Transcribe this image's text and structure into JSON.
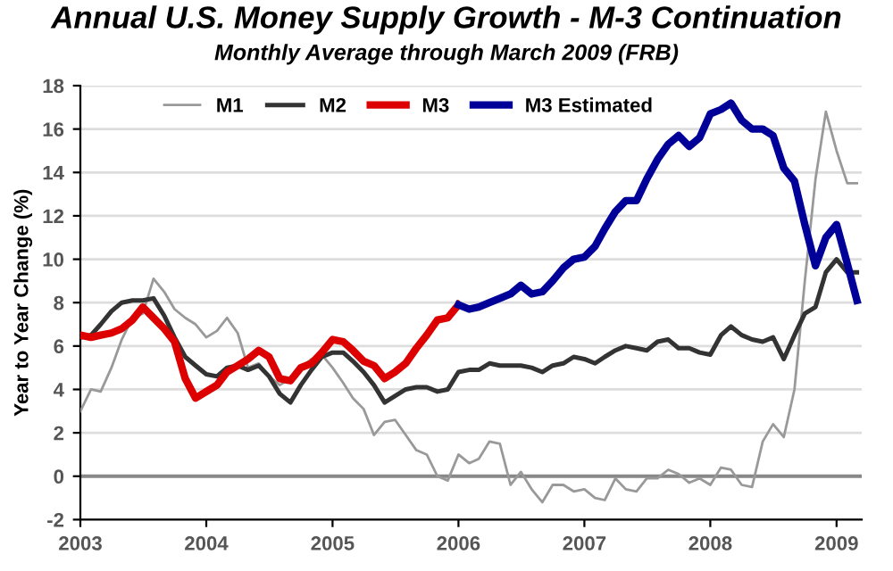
{
  "chart_data": {
    "type": "line",
    "title": "Annual U.S. Money Supply Growth - M-3 Continuation",
    "subtitle": "Monthly Average through March 2009 (FRB)",
    "ylabel": "Year to Year Change (%)",
    "x": [
      "2003-01",
      "2003-02",
      "2003-03",
      "2003-04",
      "2003-05",
      "2003-06",
      "2003-07",
      "2003-08",
      "2003-09",
      "2003-10",
      "2003-11",
      "2003-12",
      "2004-01",
      "2004-02",
      "2004-03",
      "2004-04",
      "2004-05",
      "2004-06",
      "2004-07",
      "2004-08",
      "2004-09",
      "2004-10",
      "2004-11",
      "2004-12",
      "2005-01",
      "2005-02",
      "2005-03",
      "2005-04",
      "2005-05",
      "2005-06",
      "2005-07",
      "2005-08",
      "2005-09",
      "2005-10",
      "2005-11",
      "2005-12",
      "2006-01",
      "2006-02",
      "2006-03",
      "2006-04",
      "2006-05",
      "2006-06",
      "2006-07",
      "2006-08",
      "2006-09",
      "2006-10",
      "2006-11",
      "2006-12",
      "2007-01",
      "2007-02",
      "2007-03",
      "2007-04",
      "2007-05",
      "2007-06",
      "2007-07",
      "2007-08",
      "2007-09",
      "2007-10",
      "2007-11",
      "2007-12",
      "2008-01",
      "2008-02",
      "2008-03",
      "2008-04",
      "2008-05",
      "2008-06",
      "2008-07",
      "2008-08",
      "2008-09",
      "2008-10",
      "2008-11",
      "2008-12",
      "2009-01",
      "2009-02",
      "2009-03"
    ],
    "series": [
      {
        "name": "M1",
        "color": "#999999",
        "values": [
          3.0,
          4.0,
          3.9,
          5.0,
          6.3,
          7.3,
          7.5,
          9.1,
          8.5,
          7.7,
          7.3,
          7.0,
          6.4,
          6.7,
          7.3,
          6.6,
          5.0,
          5.2,
          4.6,
          4.2,
          4.5,
          5.0,
          5.4,
          5.6,
          5.0,
          4.3,
          3.6,
          3.1,
          1.9,
          2.5,
          2.6,
          1.9,
          1.2,
          1.0,
          0.0,
          -0.2,
          1.0,
          0.6,
          0.8,
          1.6,
          1.5,
          -0.4,
          0.2,
          -0.6,
          -1.2,
          -0.4,
          -0.4,
          -0.7,
          -0.6,
          -1.0,
          -1.1,
          -0.1,
          -0.6,
          -0.7,
          -0.1,
          -0.1,
          0.3,
          0.1,
          -0.3,
          -0.1,
          -0.4,
          0.4,
          0.3,
          -0.4,
          -0.5,
          1.6,
          2.4,
          1.8,
          4.0,
          9.0,
          13.7,
          16.8,
          15.0,
          13.5,
          13.5
        ]
      },
      {
        "name": "M2",
        "color": "#333333",
        "values": [
          6.4,
          6.5,
          7.0,
          7.6,
          8.0,
          8.1,
          8.1,
          8.2,
          7.4,
          6.4,
          5.5,
          5.1,
          4.7,
          4.6,
          5.0,
          5.1,
          4.9,
          5.1,
          4.6,
          3.8,
          3.4,
          4.2,
          4.9,
          5.5,
          5.7,
          5.7,
          5.3,
          4.8,
          4.2,
          3.4,
          3.7,
          4.0,
          4.1,
          4.1,
          3.9,
          4.0,
          4.8,
          4.9,
          4.9,
          5.2,
          5.1,
          5.1,
          5.1,
          5.0,
          4.8,
          5.1,
          5.2,
          5.5,
          5.4,
          5.2,
          5.5,
          5.8,
          6.0,
          5.9,
          5.8,
          6.2,
          6.3,
          5.9,
          5.9,
          5.7,
          5.6,
          6.5,
          6.9,
          6.5,
          6.3,
          6.2,
          6.4,
          5.4,
          6.5,
          7.5,
          7.8,
          9.4,
          10.0,
          9.4,
          9.4
        ]
      },
      {
        "name": "M3",
        "color": "#dd0000",
        "x": [
          "2003-01",
          "2003-02",
          "2003-03",
          "2003-04",
          "2003-05",
          "2003-06",
          "2003-07",
          "2003-08",
          "2003-09",
          "2003-10",
          "2003-11",
          "2003-12",
          "2004-01",
          "2004-02",
          "2004-03",
          "2004-04",
          "2004-05",
          "2004-06",
          "2004-07",
          "2004-08",
          "2004-09",
          "2004-10",
          "2004-11",
          "2004-12",
          "2005-01",
          "2005-02",
          "2005-03",
          "2005-04",
          "2005-05",
          "2005-06",
          "2005-07",
          "2005-08",
          "2005-09",
          "2005-10",
          "2005-11",
          "2005-12",
          "2006-01"
        ],
        "values": [
          6.5,
          6.4,
          6.5,
          6.6,
          6.8,
          7.2,
          7.8,
          7.3,
          6.8,
          6.2,
          4.5,
          3.6,
          3.9,
          4.2,
          4.8,
          5.1,
          5.4,
          5.8,
          5.5,
          4.5,
          4.4,
          5.0,
          5.2,
          5.7,
          6.3,
          6.2,
          5.8,
          5.3,
          5.1,
          4.5,
          4.8,
          5.2,
          5.9,
          6.5,
          7.2,
          7.3,
          7.9
        ]
      },
      {
        "name": "M3 Estimated",
        "color": "#000099",
        "x": [
          "2006-01",
          "2006-02",
          "2006-03",
          "2006-04",
          "2006-05",
          "2006-06",
          "2006-07",
          "2006-08",
          "2006-09",
          "2006-10",
          "2006-11",
          "2006-12",
          "2007-01",
          "2007-02",
          "2007-03",
          "2007-04",
          "2007-05",
          "2007-06",
          "2007-07",
          "2007-08",
          "2007-09",
          "2007-10",
          "2007-11",
          "2007-12",
          "2008-01",
          "2008-02",
          "2008-03",
          "2008-04",
          "2008-05",
          "2008-06",
          "2008-07",
          "2008-08",
          "2008-09",
          "2008-10",
          "2008-11",
          "2008-12",
          "2009-01",
          "2009-02",
          "2009-03"
        ],
        "values": [
          7.9,
          7.7,
          7.8,
          8.0,
          8.2,
          8.4,
          8.8,
          8.4,
          8.5,
          9.0,
          9.6,
          10.0,
          10.1,
          10.6,
          11.4,
          12.2,
          12.7,
          12.7,
          13.7,
          14.6,
          15.3,
          15.7,
          15.2,
          15.6,
          16.7,
          16.9,
          17.2,
          16.4,
          16.0,
          16.0,
          15.7,
          14.2,
          13.6,
          11.6,
          9.7,
          11.0,
          11.6,
          9.8,
          8.1
        ]
      }
    ],
    "xlim": [
      "2003-01",
      "2009-03-15"
    ],
    "xticks": [
      {
        "value": "2003-01",
        "label": "2003"
      },
      {
        "value": "2004-01",
        "label": "2004"
      },
      {
        "value": "2005-01",
        "label": "2005"
      },
      {
        "value": "2006-01",
        "label": "2006"
      },
      {
        "value": "2007-01",
        "label": "2007"
      },
      {
        "value": "2008-01",
        "label": "2008"
      },
      {
        "value": "2009-01",
        "label": "2009"
      }
    ],
    "ylim": [
      -2,
      18
    ],
    "yticks": [
      -2,
      0,
      2,
      4,
      6,
      8,
      10,
      12,
      14,
      16,
      18
    ],
    "ref_lines": [
      {
        "axis": "y",
        "value": 0,
        "color": "#888888"
      }
    ],
    "grid": "y",
    "legend": "top",
    "line_style": "solid",
    "marker": "none"
  }
}
